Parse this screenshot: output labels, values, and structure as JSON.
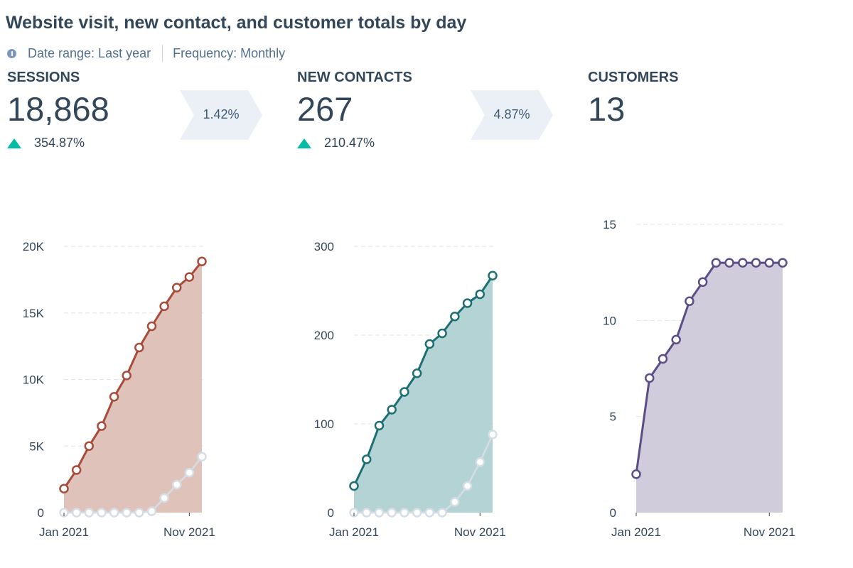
{
  "report": {
    "title": "Website visit, new contact, and customer totals by day",
    "date_range": "Date range: Last year",
    "frequency": "Frequency: Monthly"
  },
  "icons": {
    "info": "info-icon",
    "change_up": "triangle-up-icon",
    "conversion": "chevron-arrow-icon"
  },
  "kpis": [
    {
      "label": "SESSIONS",
      "value": "18,868",
      "change": "354.87%",
      "direction": "up"
    },
    {
      "label": "NEW CONTACTS",
      "value": "267",
      "change": "210.47%",
      "direction": "up"
    },
    {
      "label": "CUSTOMERS",
      "value": "13"
    }
  ],
  "conversions": [
    "1.42%",
    "4.87%"
  ],
  "colors": {
    "sessions_line": "#a84b3a",
    "sessions_fill": "#dfc3bb",
    "contacts_line": "#1c6f72",
    "contacts_fill": "#b4d3d5",
    "customers_line": "#5c4c87",
    "customers_fill": "#d0ccdc",
    "comparison": "#d5dde5",
    "grid": "#dfe3eb",
    "text": "#33475b",
    "up": "#00bda5"
  },
  "chart_data": [
    {
      "type": "area",
      "ylim": [
        0,
        20000
      ],
      "yticks": [
        0,
        5000,
        10000,
        15000,
        20000
      ],
      "yticklabels": [
        "0",
        "5K",
        "10K",
        "15K",
        "20K"
      ],
      "xticklabels": [
        "Jan 2021",
        "Nov 2021"
      ],
      "series": [
        {
          "values": [
            1800,
            3200,
            5000,
            6500,
            8700,
            10300,
            12400,
            14000,
            15500,
            16900,
            17700,
            18868
          ]
        },
        {
          "values": [
            0,
            0,
            0,
            0,
            0,
            0,
            0,
            100,
            1100,
            2100,
            3000,
            4200
          ]
        }
      ]
    },
    {
      "type": "area",
      "ylim": [
        0,
        300
      ],
      "yticks": [
        0,
        100,
        200,
        300
      ],
      "yticklabels": [
        "0",
        "100",
        "200",
        "300"
      ],
      "xticklabels": [
        "Jan 2021",
        "Nov 2021"
      ],
      "series": [
        {
          "values": [
            30,
            60,
            98,
            116,
            136,
            157,
            190,
            202,
            221,
            236,
            246,
            267
          ]
        },
        {
          "values": [
            0,
            0,
            0,
            0,
            0,
            0,
            0,
            0,
            12,
            30,
            57,
            88
          ]
        }
      ]
    },
    {
      "type": "area",
      "ylim": [
        0,
        15
      ],
      "yticks": [
        0,
        5,
        10,
        15
      ],
      "yticklabels": [
        "0",
        "5",
        "10",
        "15"
      ],
      "xticklabels": [
        "Jan 2021",
        "Nov 2021"
      ],
      "series": [
        {
          "values": [
            2,
            7,
            8,
            9,
            11,
            12,
            13,
            13,
            13,
            13,
            13,
            13
          ]
        }
      ]
    }
  ]
}
